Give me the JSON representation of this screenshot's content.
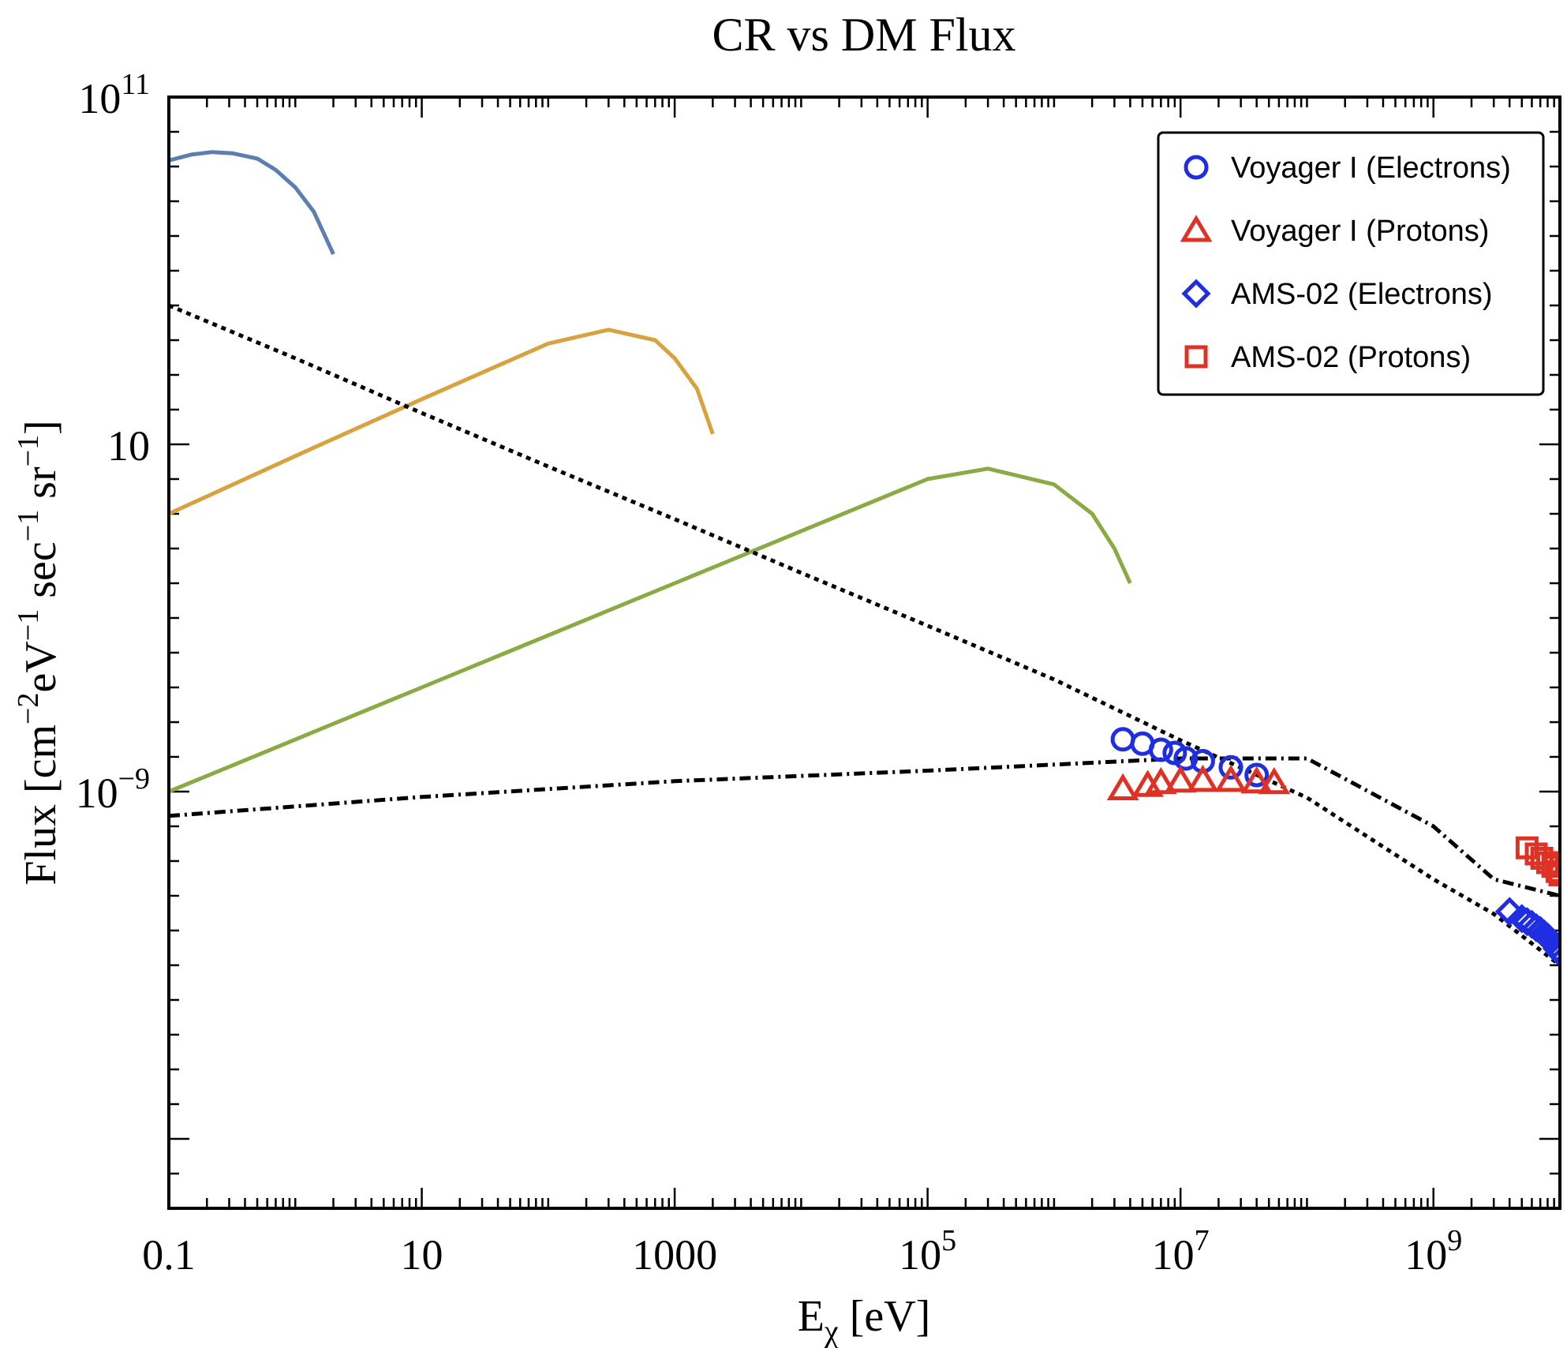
{
  "chart_data": {
    "type": "line",
    "title": "CR vs DM Flux",
    "xlabel": {
      "base": "E",
      "sub": "χ",
      "unit": " [eV]"
    },
    "ylabel": {
      "parts": [
        {
          "t": "Flux [cm",
          "s": "n"
        },
        {
          "t": "−2",
          "s": "sup"
        },
        {
          "t": "eV",
          "s": "n"
        },
        {
          "t": "−1",
          "s": "sup"
        },
        {
          "t": " sec",
          "s": "n"
        },
        {
          "t": "−1",
          "s": "sup"
        },
        {
          "t": " sr",
          "s": "n"
        },
        {
          "t": "−1",
          "s": "sup"
        },
        {
          "t": "]",
          "s": "n"
        }
      ]
    },
    "x_scale": "log",
    "y_scale": "log",
    "xlim": [
      0.1,
      10000000000.0
    ],
    "ylim": [
      1e-21,
      100000000000.0
    ],
    "x_ticks": [
      {
        "value": 0.1,
        "label": "0.1"
      },
      {
        "value": 10,
        "label": "10"
      },
      {
        "value": 1000,
        "label": "1000"
      },
      {
        "value": 100000,
        "base": "10",
        "exp": "5"
      },
      {
        "value": 10000000,
        "base": "10",
        "exp": "7"
      },
      {
        "value": 1000000000,
        "base": "10",
        "exp": "9"
      }
    ],
    "y_ticks": [
      {
        "value": 100000000000.0,
        "base": "10",
        "exp": "11"
      },
      {
        "value": 10,
        "label": "10"
      },
      {
        "value": 1e-09,
        "base": "10",
        "exp": "−9"
      }
    ],
    "legend_position": "top-right",
    "series": [
      {
        "style": "solid",
        "color": "#5b7fae",
        "x": [
          0.1,
          0.15,
          0.22,
          0.32,
          0.5,
          0.7,
          1.0,
          1.4,
          2.0
        ],
        "y": [
          1500000000.0,
          2200000000.0,
          2600000000.0,
          2400000000.0,
          1700000000.0,
          800000000.0,
          250000000.0,
          50000000.0,
          3000000.0
        ]
      },
      {
        "style": "solid",
        "color": "#d8a23f",
        "x": [
          0.1,
          1,
          10,
          100,
          300,
          700,
          1000,
          1500,
          2000
        ],
        "y": [
          0.1,
          4.6,
          200,
          8000,
          20000.0,
          10000.0,
          3000,
          400,
          20
        ]
      },
      {
        "style": "solid",
        "color": "#8aaa44",
        "x": [
          0.1,
          10,
          1000,
          100000.0,
          300000.0,
          1000000.0,
          2000000.0,
          3000000.0,
          4000000.0
        ],
        "y": [
          1e-09,
          1e-06,
          0.001,
          1,
          2,
          0.7,
          0.1,
          0.01,
          0.001
        ]
      },
      {
        "style": "dotted",
        "color": "#000000",
        "x": [
          0.1,
          1,
          10,
          100,
          1000,
          10000.0,
          100000.0,
          1000000.0,
          10000000.0,
          100000000.0,
          1000000000.0,
          3000000000.0,
          10000000000.0
        ],
        "y": [
          100000.0,
          3000,
          80,
          2.3,
          0.07,
          0.002,
          6e-05,
          1.7e-06,
          3e-08,
          6.7e-10,
          3e-12,
          3e-13,
          1e-14
        ]
      },
      {
        "style": "dashdot",
        "color": "#000000",
        "x": [
          0.1,
          10,
          1000,
          100000.0,
          1000000.0,
          10000000.0,
          100000000.0,
          1000000000.0,
          3000000000.0,
          10000000000.0
        ],
        "y": [
          2e-10,
          7e-10,
          2e-09,
          4e-09,
          6e-09,
          9e-09,
          9e-09,
          1e-10,
          3e-12,
          1e-12
        ]
      },
      {
        "name": "Voyager I (Electrons)",
        "marker": "circle",
        "color": "#1f2ee0",
        "x": [
          3500000.0,
          5000000.0,
          7000000.0,
          9000000.0,
          11000000.0,
          15000000.0,
          25000000.0,
          40000000.0
        ],
        "y": [
          3.2e-08,
          2.4e-08,
          1.6e-08,
          1.3e-08,
          9e-09,
          7.5e-09,
          5e-09,
          3e-09
        ]
      },
      {
        "name": "Voyager I (Protons)",
        "marker": "triangle",
        "color": "#e03224",
        "x": [
          3500000.0,
          5500000.0,
          7000000.0,
          10000000.0,
          15000000.0,
          25000000.0,
          40000000.0,
          55000000.0
        ],
        "y": [
          1.2e-09,
          1.5e-09,
          1.8e-09,
          2e-09,
          2.1e-09,
          2.1e-09,
          1.9e-09,
          1.8e-09
        ]
      },
      {
        "name": "AMS-02 (Electrons)",
        "marker": "diamond",
        "color": "#1f2ee0",
        "x": [
          4000000000.0,
          5000000000.0,
          5500000000.0,
          6000000000.0,
          6500000000.0,
          7000000000.0,
          7500000000.0,
          8000000000.0,
          8500000000.0,
          9000000000.0,
          9500000000.0,
          10000000000.0
        ],
        "y": [
          3.5e-13,
          2.2e-13,
          1.8e-13,
          1.5e-13,
          1.2e-13,
          1e-13,
          8e-14,
          6.5e-14,
          5e-14,
          4e-14,
          3e-14,
          2.3e-14
        ]
      },
      {
        "name": "AMS-02 (Protons)",
        "marker": "square",
        "color": "#e03224",
        "x": [
          5500000000.0,
          6500000000.0,
          7200000000.0,
          8000000000.0,
          8800000000.0,
          9500000000.0,
          10000000000.0
        ],
        "y": [
          2.4e-11,
          1.6e-11,
          1.2e-11,
          9e-12,
          7e-12,
          5e-12,
          4e-12
        ]
      }
    ]
  }
}
